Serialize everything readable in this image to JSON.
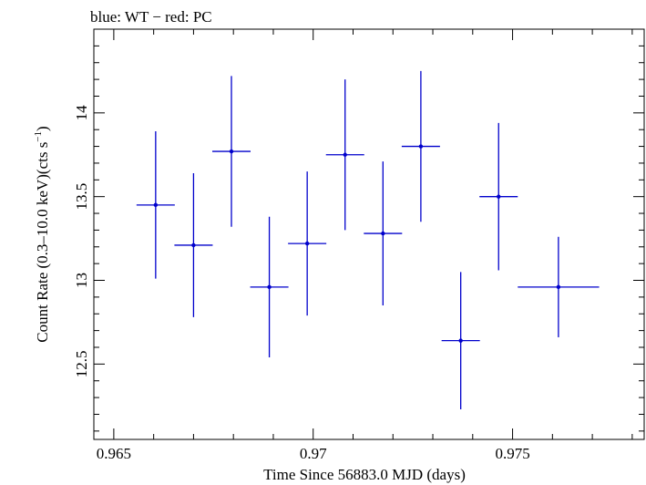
{
  "chart_data": {
    "type": "scatter",
    "title": "blue: WT − red: PC",
    "xlabel": "Time Since 56883.0 MJD (days)",
    "ylabel_main": "Count Rate (0.3–10.0 keV)(cts s",
    "ylabel_sup": "−1",
    "ylabel_end": ")",
    "xlim": [
      0.9645,
      0.9783
    ],
    "ylim": [
      12.05,
      14.5
    ],
    "xticks": [
      0.965,
      0.97,
      0.975
    ],
    "xtick_labels": [
      "0.965",
      "0.97",
      "0.975"
    ],
    "yticks": [
      12.5,
      13,
      13.5,
      14
    ],
    "ytick_labels": [
      "12.5",
      "13",
      "13.5",
      "14"
    ],
    "grid": false,
    "series": [
      {
        "color": "#0000cc",
        "points": [
          {
            "x": 0.96605,
            "y": 13.45,
            "xerr_lo": 0.00048,
            "xerr_hi": 0.00048,
            "yerr": 0.44
          },
          {
            "x": 0.967,
            "y": 13.21,
            "xerr_lo": 0.00048,
            "xerr_hi": 0.00048,
            "yerr": 0.43
          },
          {
            "x": 0.96795,
            "y": 13.77,
            "xerr_lo": 0.00048,
            "xerr_hi": 0.00048,
            "yerr": 0.45
          },
          {
            "x": 0.9689,
            "y": 12.96,
            "xerr_lo": 0.00048,
            "xerr_hi": 0.00048,
            "yerr": 0.42
          },
          {
            "x": 0.96985,
            "y": 13.22,
            "xerr_lo": 0.00048,
            "xerr_hi": 0.00048,
            "yerr": 0.43
          },
          {
            "x": 0.9708,
            "y": 13.75,
            "xerr_lo": 0.00048,
            "xerr_hi": 0.00048,
            "yerr": 0.45
          },
          {
            "x": 0.97175,
            "y": 13.28,
            "xerr_lo": 0.00048,
            "xerr_hi": 0.00048,
            "yerr": 0.43
          },
          {
            "x": 0.9727,
            "y": 13.8,
            "xerr_lo": 0.00048,
            "xerr_hi": 0.00048,
            "yerr": 0.45
          },
          {
            "x": 0.9737,
            "y": 12.64,
            "xerr_lo": 0.00048,
            "xerr_hi": 0.00048,
            "yerr": 0.41
          },
          {
            "x": 0.97465,
            "y": 13.5,
            "xerr_lo": 0.00048,
            "xerr_hi": 0.00048,
            "yerr": 0.44
          },
          {
            "x": 0.97615,
            "y": 12.96,
            "xerr_lo": 0.00102,
            "xerr_hi": 0.00102,
            "yerr": 0.3
          }
        ]
      }
    ]
  }
}
